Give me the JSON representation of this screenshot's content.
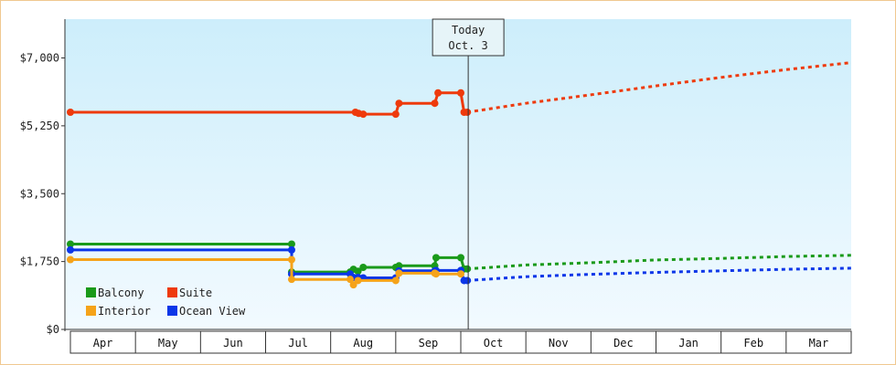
{
  "colors": {
    "Balcony": "#1a9a1a",
    "Suite": "#ee3a0c",
    "Interior": "#f5a31a",
    "Ocean View": "#0b36e8",
    "plot_top": "#cdeefb",
    "plot_bottom": "#f2faff"
  },
  "chart_data": {
    "type": "line",
    "title": "",
    "xlabel": "",
    "ylabel": "",
    "ylim": [
      0,
      8000
    ],
    "y_ticks": [
      "$0",
      "$1,750",
      "$3,500",
      "$5,250",
      "$7,000"
    ],
    "y_tick_values": [
      0,
      1750,
      3500,
      5250,
      7000
    ],
    "x_categories": [
      "Apr",
      "May",
      "Jun",
      "Jul",
      "Aug",
      "Sep",
      "Oct",
      "Nov",
      "Dec",
      "Jan",
      "Feb",
      "Mar"
    ],
    "today_marker": {
      "line1": "Today",
      "line2": "Oct. 3",
      "x": 6.1
    },
    "legend": [
      "Balcony",
      "Suite",
      "Interior",
      "Ocean View"
    ],
    "legend_position": "bottom-left",
    "series": [
      {
        "name": "Suite",
        "points": [
          [
            0,
            5600
          ],
          [
            3.35,
            5600
          ],
          [
            3.35,
            5600
          ],
          [
            4.38,
            5600
          ],
          [
            4.43,
            5570
          ],
          [
            4.5,
            5550
          ],
          [
            5.0,
            5550
          ],
          [
            5.05,
            5830
          ],
          [
            5.6,
            5830
          ],
          [
            5.65,
            6100
          ],
          [
            6.0,
            6100
          ],
          [
            6.05,
            5600
          ],
          [
            6.1,
            5600
          ]
        ],
        "forecast": [
          [
            6.1,
            5600
          ],
          [
            7,
            5830
          ],
          [
            8,
            6050
          ],
          [
            9,
            6280
          ],
          [
            10,
            6500
          ],
          [
            11,
            6700
          ],
          [
            12,
            6880
          ]
        ]
      },
      {
        "name": "Balcony",
        "points": [
          [
            0,
            2200
          ],
          [
            3.4,
            2200
          ],
          [
            3.4,
            1480
          ],
          [
            4.3,
            1480
          ],
          [
            4.35,
            1550
          ],
          [
            4.42,
            1500
          ],
          [
            4.5,
            1600
          ],
          [
            5.0,
            1600
          ],
          [
            5.05,
            1640
          ],
          [
            5.6,
            1640
          ],
          [
            5.62,
            1850
          ],
          [
            6.0,
            1850
          ],
          [
            6.05,
            1560
          ],
          [
            6.1,
            1560
          ]
        ],
        "forecast": [
          [
            6.1,
            1560
          ],
          [
            7,
            1660
          ],
          [
            8,
            1720
          ],
          [
            9,
            1790
          ],
          [
            10,
            1830
          ],
          [
            11,
            1880
          ],
          [
            12,
            1910
          ]
        ]
      },
      {
        "name": "Ocean View",
        "points": [
          [
            0,
            2050
          ],
          [
            3.4,
            2050
          ],
          [
            3.4,
            1430
          ],
          [
            4.3,
            1430
          ],
          [
            4.35,
            1340
          ],
          [
            4.42,
            1340
          ],
          [
            4.5,
            1330
          ],
          [
            5.0,
            1330
          ],
          [
            5.05,
            1510
          ],
          [
            5.6,
            1510
          ],
          [
            5.62,
            1520
          ],
          [
            6.0,
            1520
          ],
          [
            6.05,
            1260
          ],
          [
            6.1,
            1260
          ]
        ],
        "forecast": [
          [
            6.1,
            1260
          ],
          [
            7,
            1360
          ],
          [
            8,
            1420
          ],
          [
            9,
            1470
          ],
          [
            10,
            1510
          ],
          [
            11,
            1550
          ],
          [
            12,
            1580
          ]
        ]
      },
      {
        "name": "Interior",
        "points": [
          [
            0,
            1800
          ],
          [
            3.4,
            1800
          ],
          [
            3.4,
            1290
          ],
          [
            4.3,
            1290
          ],
          [
            4.35,
            1150
          ],
          [
            4.42,
            1260
          ],
          [
            4.5,
            1260
          ],
          [
            5.0,
            1260
          ],
          [
            5.05,
            1450
          ],
          [
            5.6,
            1450
          ],
          [
            5.62,
            1430
          ],
          [
            6.0,
            1430
          ]
        ]
      }
    ]
  }
}
